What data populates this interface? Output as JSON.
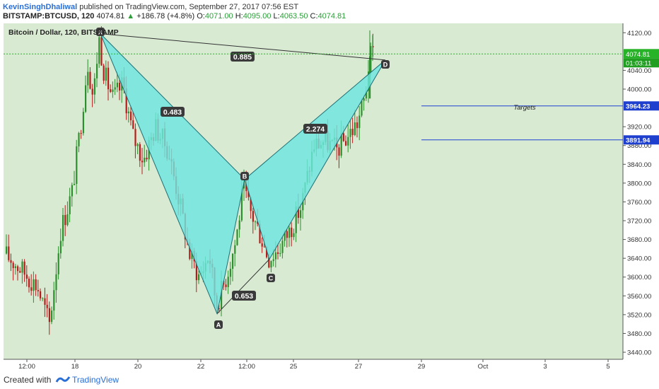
{
  "header": {
    "author": "KevinSinghDhaliwal",
    "published_text": "published on TradingView.com, September 27, 2017 07:56 EST",
    "symbol": "BITSTAMP:BTCUSD, 120",
    "last": "4074.81",
    "change": "+186.78 (+4.8%)",
    "o_label": "O:",
    "o_value": "4071.00",
    "h_label": "H:",
    "h_value": "4095.00",
    "l_label": "L:",
    "l_value": "4063.50",
    "c_label": "C:",
    "c_value": "4074.81"
  },
  "footer": {
    "created_with": "Created with",
    "brand": "TradingView",
    "logo_icon": "tradingview-logo-icon"
  },
  "colors": {
    "plot_background": "#d9ead3",
    "candle_up": "#2d8f2d",
    "candle_down": "#b71c1c",
    "pattern_fill": "#6ee6e0",
    "target_line": "#1f3fcf",
    "price_marker": "#27b327"
  },
  "chart_data": {
    "type": "candlestick",
    "title": "Bitcoin / Dollar, 120, BITSTAMP",
    "x_tick_labels": [
      "12:00",
      "18",
      "20",
      "22",
      "12:00",
      "25",
      "27",
      "29",
      "Oct",
      "3",
      "5"
    ],
    "y_tick_labels": [
      "3440.00",
      "3480.00",
      "3520.00",
      "3560.00",
      "3600.00",
      "3640.00",
      "3680.00",
      "3720.00",
      "3760.00",
      "3800.00",
      "3840.00",
      "3880.00",
      "3920.00",
      "4000.00",
      "4040.00",
      "4120.00"
    ],
    "ylim": [
      3425,
      4140
    ],
    "last_price": "4074.81",
    "countdown": "01:03:11",
    "pattern_points": [
      {
        "label": "X",
        "x": "Sep 18 late",
        "price": 4120
      },
      {
        "label": "A",
        "x": "Sep 22 late",
        "price": 3520
      },
      {
        "label": "B",
        "x": "Sep 23 12:00",
        "price": 3810
      },
      {
        "label": "C",
        "x": "Sep 24",
        "price": 3620
      },
      {
        "label": "D",
        "x": "Sep 27 late",
        "price": 4060
      }
    ],
    "ratios": [
      {
        "value": "0.885",
        "between": "X-D"
      },
      {
        "value": "0.483",
        "between": "XA-B"
      },
      {
        "value": "0.653",
        "between": "A-C"
      },
      {
        "value": "2.274",
        "between": "BC-D"
      }
    ],
    "targets_label": "Targets",
    "targets": [
      {
        "value": 3964.23,
        "label": "3964.23"
      },
      {
        "value": 3891.94,
        "label": "3891.94"
      }
    ]
  }
}
